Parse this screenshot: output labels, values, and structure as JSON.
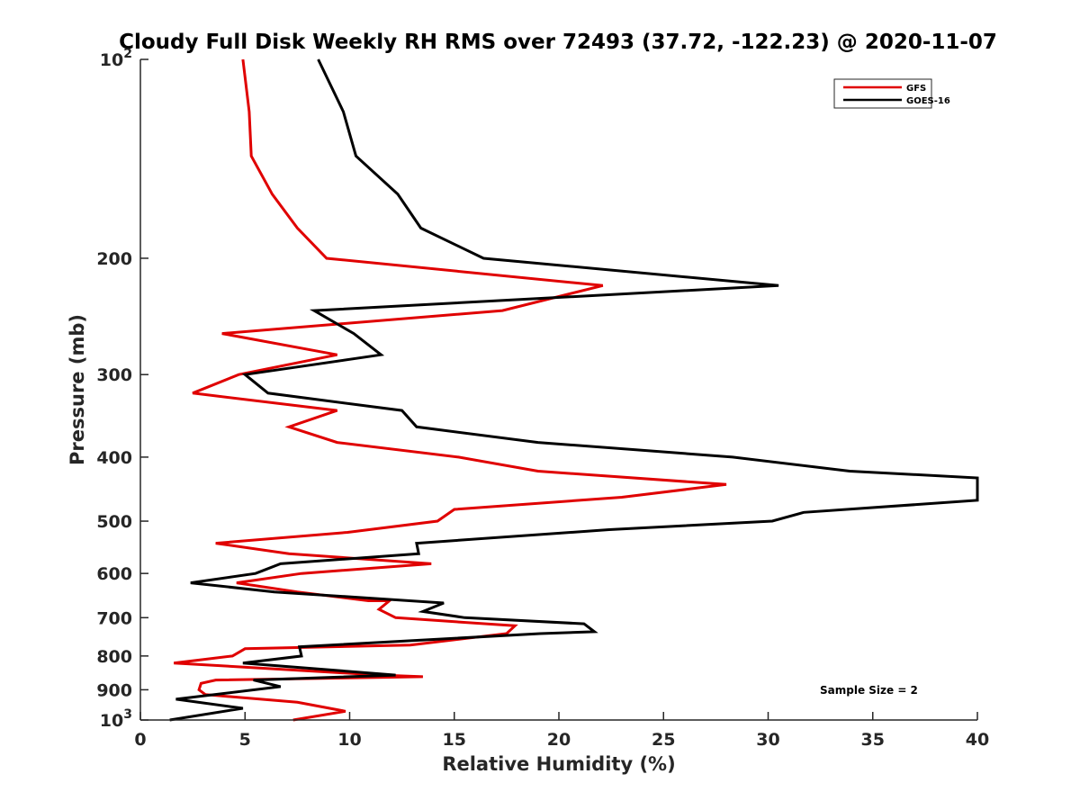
{
  "chart_data": {
    "type": "line",
    "title": "Cloudy Full Disk Weekly RH RMS over 72493 (37.72, -122.23) @ 2020-11-07",
    "xlabel": "Relative Humidity (%)",
    "ylabel": "Pressure (mb)",
    "xlim": [
      0,
      40
    ],
    "ylim": [
      100,
      1000
    ],
    "yscale": "log",
    "yreversed": true,
    "grid": false,
    "x_ticks": [
      0,
      5,
      10,
      15,
      20,
      25,
      30,
      35,
      40
    ],
    "x_tick_labels": [
      "0",
      "5",
      "10",
      "15",
      "20",
      "25",
      "30",
      "35",
      "40"
    ],
    "y_ticks": [
      100,
      200,
      300,
      400,
      500,
      600,
      700,
      800,
      900,
      1000
    ],
    "y_tick_labels": [
      "10^2",
      "200",
      "300",
      "400",
      "500",
      "600",
      "700",
      "800",
      "900",
      "10^3"
    ],
    "legend": {
      "placement": "top-right",
      "entries": [
        "GFS",
        "GOES-16"
      ]
    },
    "annotation": "Sample Size = 2",
    "series": [
      {
        "name": "GFS",
        "color": "#e00000",
        "points": [
          [
            4.9,
            100
          ],
          [
            5.2,
            120
          ],
          [
            5.3,
            140
          ],
          [
            6.3,
            160
          ],
          [
            7.5,
            180
          ],
          [
            8.9,
            200
          ],
          [
            22.1,
            220
          ],
          [
            17.3,
            240
          ],
          [
            3.9,
            260
          ],
          [
            9.4,
            280
          ],
          [
            4.7,
            300
          ],
          [
            2.5,
            320
          ],
          [
            9.4,
            340
          ],
          [
            7.1,
            360
          ],
          [
            9.4,
            380
          ],
          [
            15.2,
            400
          ],
          [
            19.0,
            420
          ],
          [
            28.0,
            440
          ],
          [
            23.0,
            460
          ],
          [
            15.0,
            480
          ],
          [
            14.2,
            500
          ],
          [
            9.9,
            520
          ],
          [
            3.6,
            540
          ],
          [
            7.1,
            560
          ],
          [
            13.9,
            580
          ],
          [
            7.7,
            600
          ],
          [
            4.6,
            620
          ],
          [
            7.5,
            640
          ],
          [
            10.9,
            660
          ],
          [
            11.9,
            660
          ],
          [
            11.4,
            680
          ],
          [
            12.2,
            700
          ],
          [
            17.9,
            720
          ],
          [
            17.5,
            740
          ],
          [
            12.9,
            770
          ],
          [
            5.0,
            780
          ],
          [
            4.4,
            800
          ],
          [
            1.6,
            820
          ],
          [
            11.5,
            855
          ],
          [
            13.5,
            860
          ],
          [
            3.6,
            870
          ],
          [
            2.9,
            880
          ],
          [
            2.8,
            900
          ],
          [
            3.1,
            915
          ],
          [
            7.5,
            940
          ],
          [
            9.8,
            970
          ],
          [
            7.3,
            1000
          ]
        ]
      },
      {
        "name": "GOES-16",
        "color": "#000000",
        "points": [
          [
            8.5,
            100
          ],
          [
            9.7,
            120
          ],
          [
            10.3,
            140
          ],
          [
            12.3,
            160
          ],
          [
            13.4,
            180
          ],
          [
            16.4,
            200
          ],
          [
            30.5,
            220
          ],
          [
            8.3,
            240
          ],
          [
            10.2,
            260
          ],
          [
            11.5,
            280
          ],
          [
            5.0,
            300
          ],
          [
            6.1,
            320
          ],
          [
            12.5,
            340
          ],
          [
            13.2,
            360
          ],
          [
            19.0,
            380
          ],
          [
            28.3,
            400
          ],
          [
            33.9,
            420
          ],
          [
            40.0,
            430
          ],
          [
            40.0,
            465
          ],
          [
            31.7,
            485
          ],
          [
            30.2,
            500
          ],
          [
            22.4,
            515
          ],
          [
            13.2,
            540
          ],
          [
            13.3,
            560
          ],
          [
            6.7,
            580
          ],
          [
            5.5,
            600
          ],
          [
            2.4,
            620
          ],
          [
            6.4,
            640
          ],
          [
            14.5,
            665
          ],
          [
            13.5,
            685
          ],
          [
            15.5,
            700
          ],
          [
            21.2,
            715
          ],
          [
            21.7,
            735
          ],
          [
            19.1,
            740
          ],
          [
            7.6,
            775
          ],
          [
            7.7,
            800
          ],
          [
            4.9,
            820
          ],
          [
            12.2,
            855
          ],
          [
            5.4,
            870
          ],
          [
            6.7,
            890
          ],
          [
            1.7,
            930
          ],
          [
            4.9,
            960
          ],
          [
            1.4,
            1000
          ]
        ]
      }
    ]
  }
}
